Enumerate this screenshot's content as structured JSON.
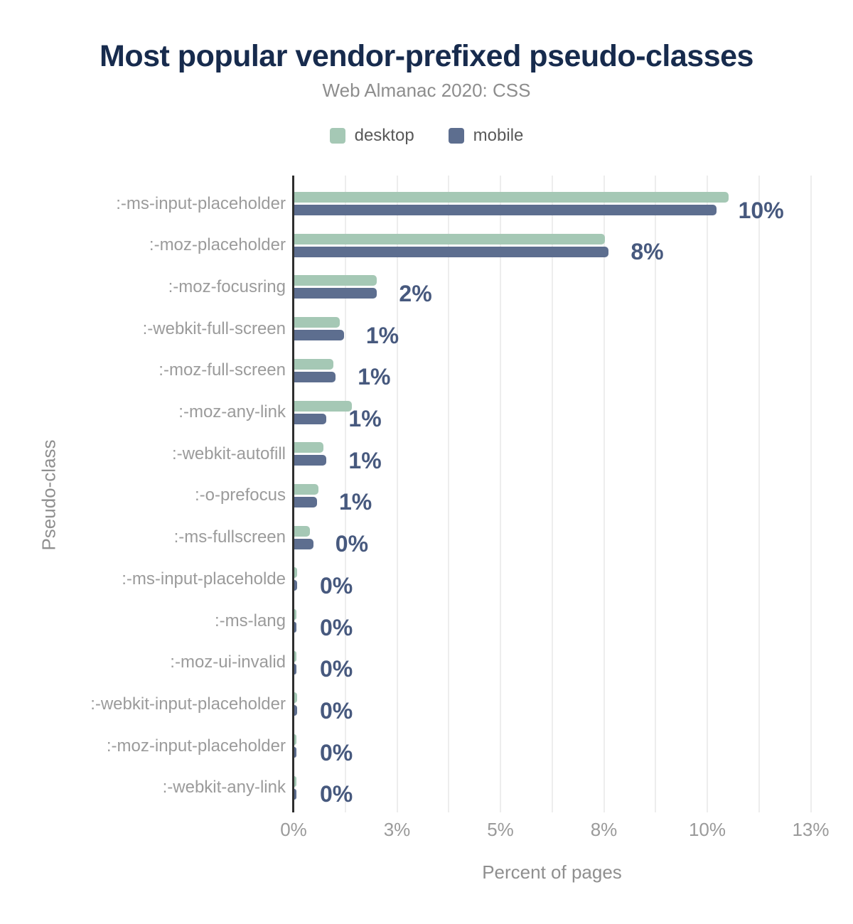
{
  "header": {
    "title": "Most popular vendor-prefixed pseudo-classes",
    "subtitle": "Web Almanac 2020: CSS"
  },
  "legend": {
    "items": [
      {
        "label": "desktop",
        "color": "#a5c8b5"
      },
      {
        "label": "mobile",
        "color": "#5d6e8f"
      }
    ]
  },
  "axes": {
    "xlabel": "Percent of pages",
    "ylabel": "Pseudo-class"
  },
  "chart_data": {
    "type": "bar",
    "orientation": "horizontal",
    "title": "Most popular vendor-prefixed pseudo-classes",
    "subtitle": "Web Almanac 2020: CSS",
    "xlabel": "Percent of pages",
    "ylabel": "Pseudo-class",
    "xlim": [
      0,
      13
    ],
    "grid": "vertical-minor-every-1.25",
    "legend_position": "top",
    "x_tick_values": [
      0,
      2.5,
      5,
      7.5,
      10,
      12.5
    ],
    "x_tick_labels": [
      "0%",
      "3%",
      "5%",
      "8%",
      "10%",
      "13%"
    ],
    "categories": [
      ":-ms-input-placeholder",
      ":-moz-placeholder",
      ":-moz-focusring",
      ":-webkit-full-screen",
      ":-moz-full-screen",
      ":-moz-any-link",
      ":-webkit-autofill",
      ":-o-prefocus",
      ":-ms-fullscreen",
      ":-ms-input-placeholde",
      ":-ms-lang",
      ":-moz-ui-invalid",
      ":-webkit-input-placeholder",
      ":-moz-input-placeholder",
      ":-webkit-any-link"
    ],
    "series": [
      {
        "name": "desktop",
        "color": "#a5c8b5",
        "values": [
          10.5,
          7.5,
          2.0,
          1.1,
          0.95,
          1.4,
          0.7,
          0.58,
          0.37,
          0.07,
          0.05,
          0.05,
          0.07,
          0.06,
          0.06
        ]
      },
      {
        "name": "mobile",
        "color": "#5d6e8f",
        "values": [
          10.2,
          7.6,
          2.0,
          1.2,
          1.0,
          0.78,
          0.78,
          0.55,
          0.46,
          0.07,
          0.06,
          0.06,
          0.07,
          0.06,
          0.04
        ]
      }
    ],
    "value_labels": [
      "10%",
      "8%",
      "2%",
      "1%",
      "1%",
      "1%",
      "1%",
      "1%",
      "0%",
      "0%",
      "0%",
      "0%",
      "0%",
      "0%",
      "0%"
    ]
  },
  "colors": {
    "title": "#172b4d",
    "subtitle": "#8d8d8d",
    "category_label": "#9b9b9b",
    "tick_label": "#9a9a9a",
    "axis_title": "#8f8f8f",
    "value_label": "#47597e",
    "gridline": "#ededed",
    "axis_line": "#2e2e2e",
    "desktop_bar": "#a5c8b5",
    "mobile_bar": "#5d6e8f"
  }
}
